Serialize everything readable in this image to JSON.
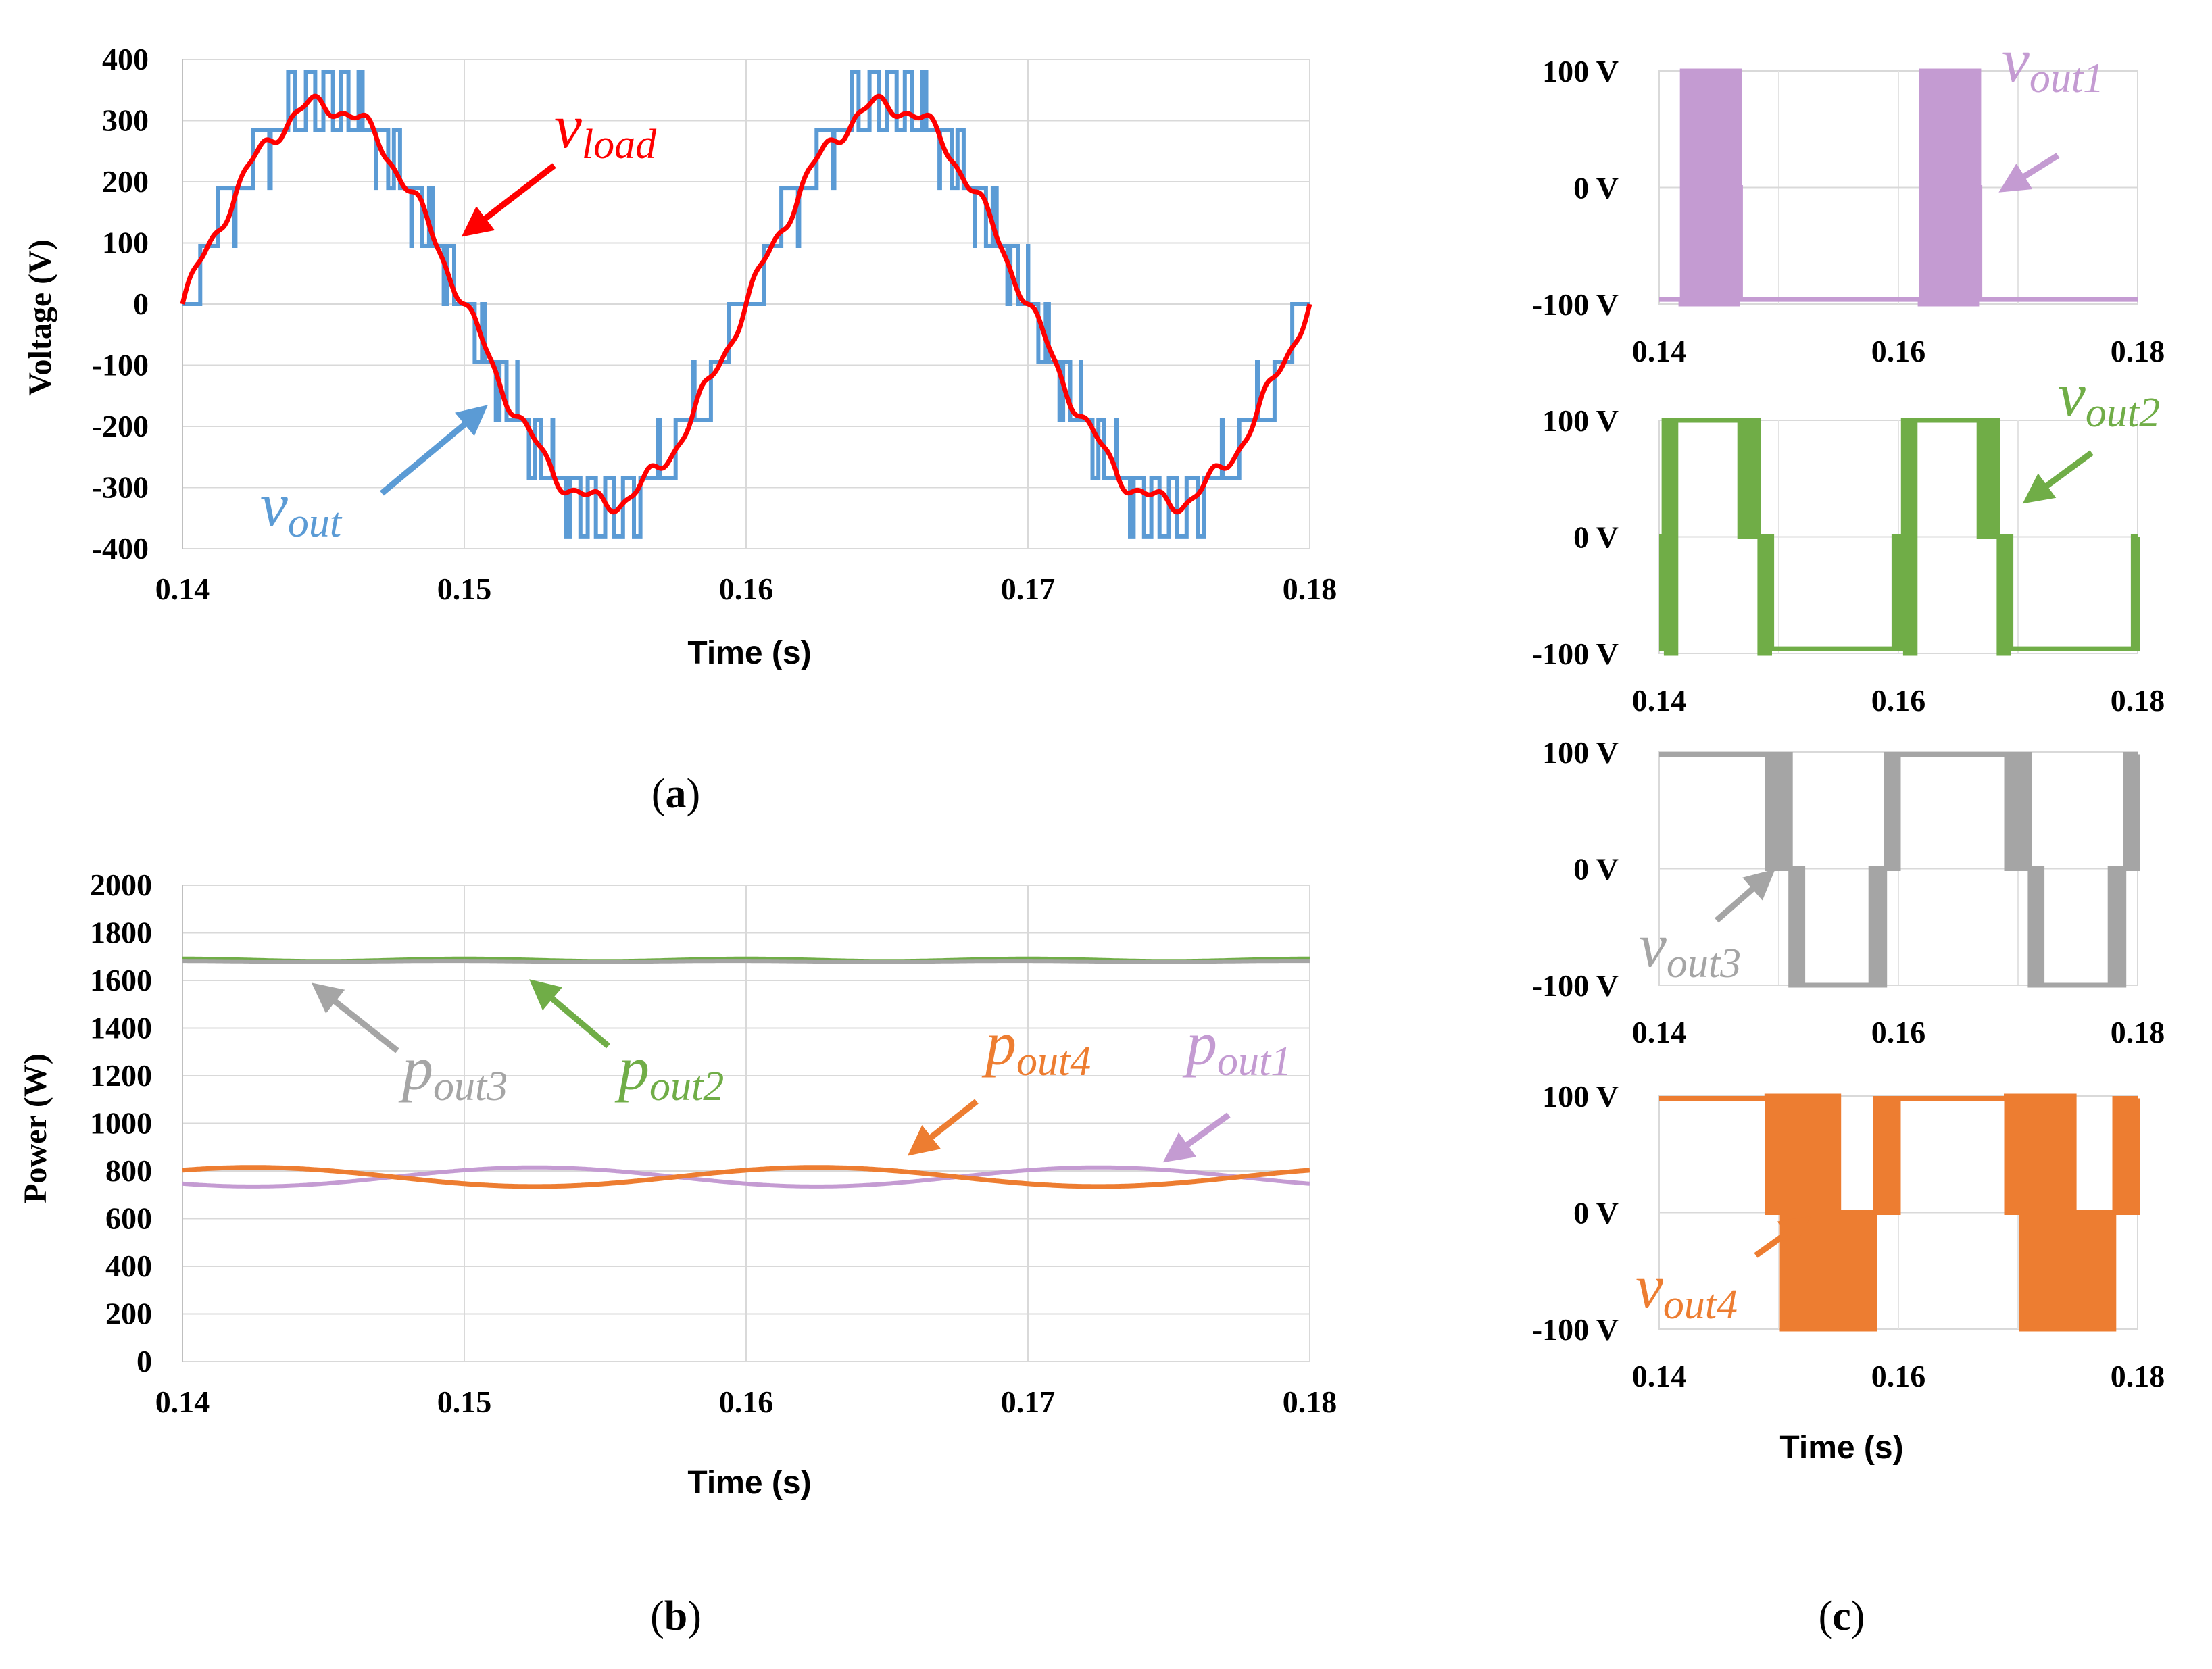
{
  "chart_data": [
    {
      "id": "a",
      "type": "line",
      "caption_letter": "a",
      "xlabel": "Time (s)",
      "ylabel": "Voltage (V)",
      "xlim": [
        0.14,
        0.18
      ],
      "ylim": [
        -400,
        400
      ],
      "xticks": [
        "0.14",
        "0.15",
        "0.16",
        "0.17",
        "0.18"
      ],
      "yticks": [
        "400",
        "300",
        "200",
        "100",
        "0",
        "-100",
        "-200",
        "-300",
        "-400"
      ],
      "grid": true,
      "series": [
        {
          "name": "v_out",
          "label_main": "v",
          "label_sub": "out",
          "color": "#5b9bd5",
          "description": "multilevel staircase PWM voltage, levels of 0, ±95, ±190, ±285, ±380 V, 50 Hz",
          "levels": [
            -380,
            -285,
            -190,
            -95,
            0,
            95,
            190,
            285,
            380
          ],
          "frequency_hz": 50
        },
        {
          "name": "v_load",
          "label_main": "v",
          "label_sub": "load",
          "color": "#ff0000",
          "description": "near-sinusoidal load voltage",
          "amplitude": 325,
          "frequency_hz": 50
        }
      ]
    },
    {
      "id": "b",
      "type": "line",
      "caption_letter": "b",
      "xlabel": "Time (s)",
      "ylabel": "Power (W)",
      "xlim": [
        0.14,
        0.18
      ],
      "ylim": [
        0,
        2000
      ],
      "xticks": [
        "0.14",
        "0.15",
        "0.16",
        "0.17",
        "0.18"
      ],
      "yticks": [
        "2000",
        "1800",
        "1600",
        "1400",
        "1200",
        "1000",
        "800",
        "600",
        "400",
        "200",
        "0"
      ],
      "grid": true,
      "series": [
        {
          "name": "p_out1",
          "label_main": "p",
          "label_sub": "out1",
          "color": "#c49bd2",
          "mean": 775,
          "ripple": 40,
          "period_s": 0.02
        },
        {
          "name": "p_out2",
          "label_main": "p",
          "label_sub": "out2",
          "color": "#70ad47",
          "mean": 1685,
          "ripple": 5,
          "period_s": 0.01
        },
        {
          "name": "p_out3",
          "label_main": "p",
          "label_sub": "out3",
          "color": "#a5a5a5",
          "mean": 1680,
          "ripple": 2,
          "period_s": 0.01
        },
        {
          "name": "p_out4",
          "label_main": "p",
          "label_sub": "out4",
          "color": "#ed7d31",
          "mean": 775,
          "ripple": 40,
          "period_s": 0.02
        }
      ]
    },
    {
      "id": "c",
      "type": "line",
      "caption_letter": "c",
      "xlabel": "Time (s)",
      "xlim": [
        0.14,
        0.18
      ],
      "ylim": [
        -100,
        100
      ],
      "xticks": [
        "0.14",
        "0.16",
        "0.18"
      ],
      "yticks": [
        "100 V",
        "0 V",
        "-100 V"
      ],
      "panels": [
        {
          "name": "v_out1",
          "label_main": "v",
          "label_sub": "out1",
          "color": "#c49bd2"
        },
        {
          "name": "v_out2",
          "label_main": "v",
          "label_sub": "out2",
          "color": "#70ad47"
        },
        {
          "name": "v_out3",
          "label_main": "v",
          "label_sub": "out3",
          "color": "#a5a5a5"
        },
        {
          "name": "v_out4",
          "label_main": "v",
          "label_sub": "out4",
          "color": "#ed7d31"
        }
      ]
    }
  ]
}
